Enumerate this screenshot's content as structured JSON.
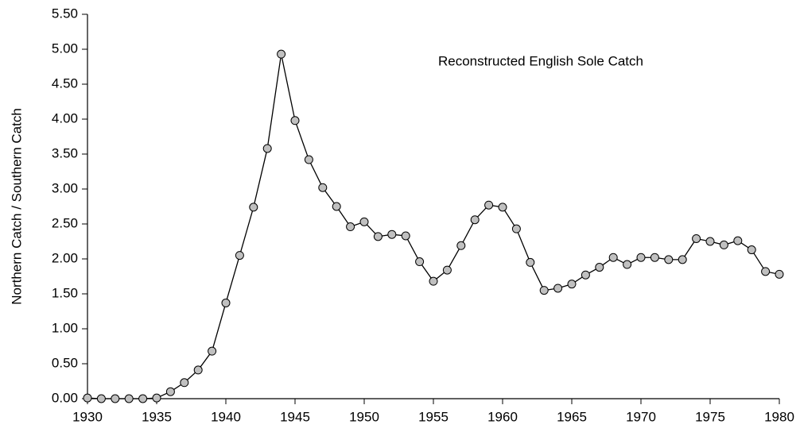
{
  "chart_data": {
    "type": "line",
    "y_label": "Northern Catch / Southern Catch",
    "annotation": "Reconstructed English Sole Catch",
    "x": [
      1930,
      1931,
      1932,
      1933,
      1934,
      1935,
      1936,
      1937,
      1938,
      1939,
      1940,
      1941,
      1942,
      1943,
      1944,
      1945,
      1946,
      1947,
      1948,
      1949,
      1950,
      1951,
      1952,
      1953,
      1954,
      1955,
      1956,
      1957,
      1958,
      1959,
      1960,
      1961,
      1962,
      1963,
      1964,
      1965,
      1966,
      1967,
      1968,
      1969,
      1970,
      1971,
      1972,
      1973,
      1974,
      1975,
      1976,
      1977,
      1978,
      1979,
      1980
    ],
    "series": [
      {
        "color": "#000000",
        "marker_color": "#c0c0c0",
        "values": [
          0.01,
          0,
          0,
          0,
          0,
          0.01,
          0.1,
          0.23,
          0.41,
          0.68,
          1.37,
          2.05,
          2.74,
          3.58,
          4.93,
          3.98,
          3.42,
          3.02,
          2.75,
          2.46,
          2.53,
          2.32,
          2.35,
          2.33,
          1.96,
          1.68,
          1.84,
          2.19,
          2.56,
          2.77,
          2.74,
          2.43,
          1.95,
          1.55,
          1.58,
          1.64,
          1.77,
          1.88,
          2.02,
          1.92,
          2.02,
          2.02,
          1.99,
          1.99,
          2.29,
          2.25,
          2.2,
          2.26,
          2.13,
          1.82,
          1.78
        ]
      }
    ],
    "xlim": [
      1930,
      1980
    ],
    "xticks": [
      1930,
      1935,
      1940,
      1945,
      1950,
      1955,
      1960,
      1965,
      1970,
      1975,
      1980
    ],
    "ylim": [
      0,
      5.5
    ],
    "yticks": [
      {
        "value": 0,
        "label": "0.00"
      },
      {
        "value": 0.5,
        "label": "0.50"
      },
      {
        "value": 1,
        "label": "1.00"
      },
      {
        "value": 1.5,
        "label": "1.50"
      },
      {
        "value": 2,
        "label": "2.00"
      },
      {
        "value": 2.5,
        "label": "2.50"
      },
      {
        "value": 3,
        "label": "3.00"
      },
      {
        "value": 3.5,
        "label": "3.50"
      },
      {
        "value": 4,
        "label": "4.00"
      },
      {
        "value": 4.5,
        "label": "4.50"
      },
      {
        "value": 5,
        "label": "5.00"
      },
      {
        "value": 5.5,
        "label": "5.50"
      }
    ],
    "grid": false
  }
}
